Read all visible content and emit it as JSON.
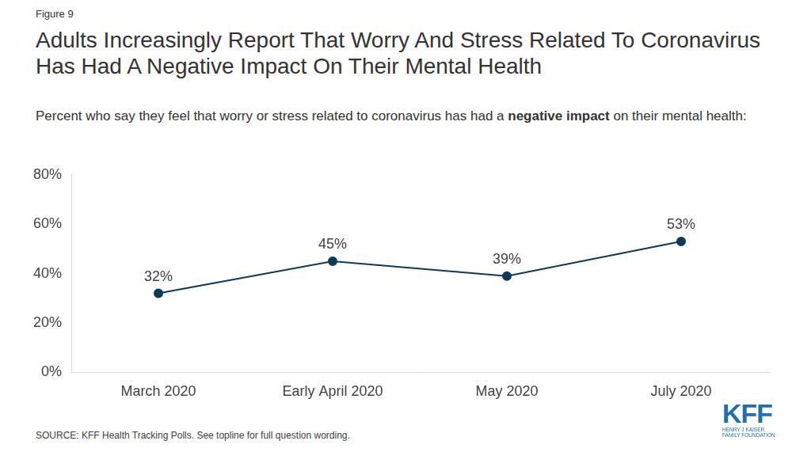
{
  "chart_data": {
    "type": "line",
    "figure_label": "Figure 9",
    "title": "Adults Increasingly Report That Worry And Stress Related To Coronavirus Has Had A Negative Impact On Their Mental Health",
    "subtitle": [
      "Percent who say they feel that worry or stress related to coronavirus has had a ",
      "negative impact",
      " on their mental health:"
    ],
    "source": "SOURCE: KFF Health Tracking Polls. See topline for full question wording.",
    "logo": {
      "text": "KFF",
      "subtext": [
        "HENRY J KAISER",
        "FAMILY FOUNDATION"
      ]
    },
    "categories": [
      "March 2020",
      "Early April 2020",
      "May 2020",
      "July 2020"
    ],
    "values": [
      32,
      45,
      39,
      53
    ],
    "value_labels": [
      "32%",
      "45%",
      "39%",
      "53%"
    ],
    "data_labels": true,
    "color": "#0b3a5b",
    "marker": "circle",
    "line_style": "solid",
    "ylim": [
      0,
      80
    ],
    "yticks": [
      {
        "value": 0,
        "label": "0%"
      },
      {
        "value": 20,
        "label": "20%"
      },
      {
        "value": 40,
        "label": "40%"
      },
      {
        "value": 60,
        "label": "60%"
      },
      {
        "value": 80,
        "label": "80%"
      }
    ],
    "grid": false
  }
}
